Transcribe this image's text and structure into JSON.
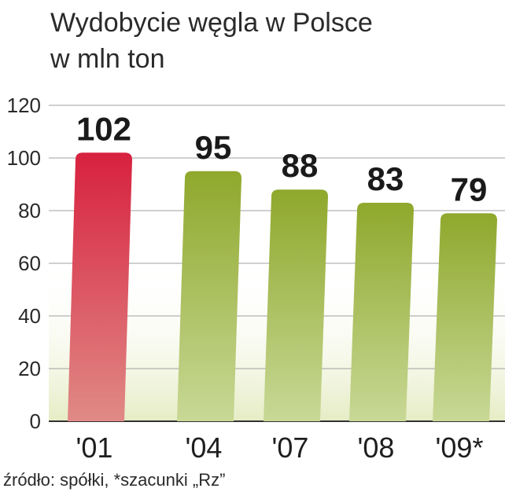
{
  "header": {
    "title": "Wydobycie węgla w Polsce",
    "subtitle": "w mln ton"
  },
  "footer": {
    "source": "źródło: spółki, *szacunki „Rz”"
  },
  "colors": {
    "highlight": "#d7324b",
    "bars": "#98ae3a",
    "grid": "#a0a0a0",
    "band": "#eef2d8"
  },
  "chart_data": {
    "type": "bar",
    "categories": [
      "'01",
      "'04",
      "'07",
      "'08",
      "'09*"
    ],
    "values": [
      102,
      95,
      88,
      83,
      79
    ],
    "highlight_index": 0,
    "ylim": [
      0,
      120
    ],
    "yticks": [
      0,
      20,
      40,
      60,
      80,
      100,
      120
    ],
    "grid": true,
    "title": "Wydobycie węgla w Polsce",
    "ylabel": "w mln ton"
  }
}
